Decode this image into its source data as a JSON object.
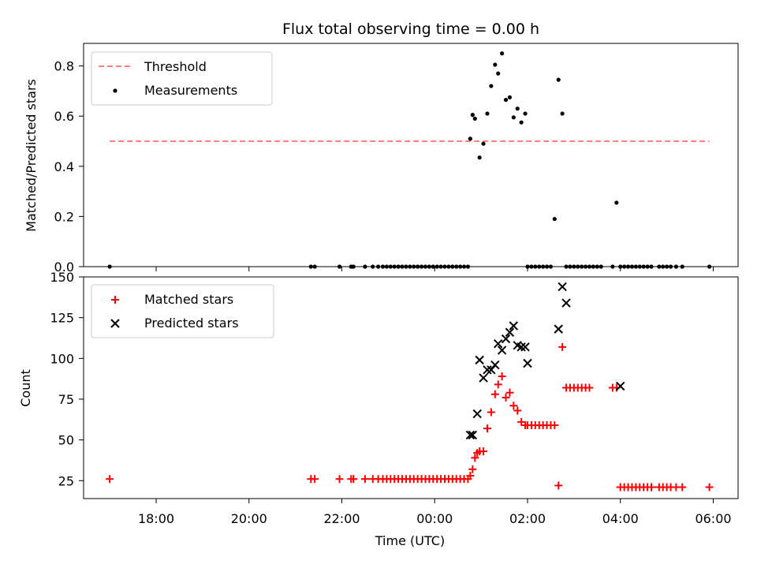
{
  "chart_data": [
    {
      "type": "scatter",
      "title": "Flux total observing time = 0.00 h",
      "ylabel": "Matched/Predicted stars",
      "xlabel": "",
      "ylim": [
        0,
        0.89
      ],
      "x_ticks": [
        "18:00",
        "20:00",
        "22:00",
        "00:00",
        "02:00",
        "04:00",
        "06:00"
      ],
      "y_ticks": [
        "0.0",
        "0.2",
        "0.4",
        "0.6",
        "0.8"
      ],
      "y_tick_values": [
        0,
        0.2,
        0.4,
        0.6,
        0.8
      ],
      "legend": {
        "position": "upper left",
        "entries": [
          "Threshold",
          "Measurements"
        ]
      },
      "threshold": {
        "name": "Threshold",
        "value": 0.5,
        "x_range": [
          "17:00",
          "05:55"
        ],
        "color": "#ff7f7f"
      },
      "series": [
        {
          "name": "Measurements",
          "color": "#000000",
          "x": [
            "17:00",
            "21:20",
            "21:25",
            "21:57",
            "22:12",
            "22:15",
            "22:30",
            "22:40",
            "22:47",
            "22:53",
            "22:58",
            "23:03",
            "23:08",
            "23:13",
            "23:18",
            "23:23",
            "23:28",
            "23:33",
            "23:38",
            "23:43",
            "23:48",
            "23:53",
            "23:58",
            "00:03",
            "00:08",
            "00:13",
            "00:18",
            "00:23",
            "00:28",
            "00:33",
            "00:38",
            "00:43",
            "00:46",
            "00:49",
            "00:52",
            "00:58",
            "01:03",
            "01:08",
            "01:13",
            "01:18",
            "01:22",
            "01:27",
            "01:32",
            "01:37",
            "01:42",
            "01:47",
            "01:52",
            "01:57",
            "02:00",
            "02:05",
            "02:10",
            "02:15",
            "02:20",
            "02:25",
            "02:30",
            "02:35",
            "02:40",
            "02:45",
            "02:50",
            "02:55",
            "03:00",
            "03:05",
            "03:10",
            "03:15",
            "03:20",
            "03:25",
            "03:30",
            "03:35",
            "03:50",
            "03:55",
            "04:00",
            "04:05",
            "04:10",
            "04:15",
            "04:20",
            "04:25",
            "04:30",
            "04:35",
            "04:40",
            "04:50",
            "04:55",
            "05:00",
            "05:05",
            "05:12",
            "05:20",
            "05:55"
          ],
          "y": [
            0.0,
            0.0,
            0.0,
            0.0,
            0.0,
            0.0,
            0.0,
            0.0,
            0.0,
            0.0,
            0.0,
            0.0,
            0.0,
            0.0,
            0.0,
            0.0,
            0.0,
            0.0,
            0.0,
            0.0,
            0.0,
            0.0,
            0.0,
            0.0,
            0.0,
            0.0,
            0.0,
            0.0,
            0.0,
            0.0,
            0.0,
            0.0,
            0.51,
            0.605,
            0.59,
            0.435,
            0.49,
            0.61,
            0.72,
            0.805,
            0.77,
            0.85,
            0.665,
            0.675,
            0.595,
            0.63,
            0.575,
            0.61,
            0.0,
            0.0,
            0.0,
            0.0,
            0.0,
            0.0,
            0.0,
            0.19,
            0.745,
            0.61,
            0.0,
            0.0,
            0.0,
            0.0,
            0.0,
            0.0,
            0.0,
            0.0,
            0.0,
            0.0,
            0.0,
            0.255,
            0.0,
            0.0,
            0.0,
            0.0,
            0.0,
            0.0,
            0.0,
            0.0,
            0.0,
            0.0,
            0.0,
            0.0,
            0.0,
            0.0,
            0.0,
            0.0
          ]
        }
      ]
    },
    {
      "type": "scatter",
      "title": "",
      "ylabel": "Count",
      "xlabel": "Time (UTC)",
      "ylim": [
        14,
        150
      ],
      "x_ticks": [
        "18:00",
        "20:00",
        "22:00",
        "00:00",
        "02:00",
        "04:00",
        "06:00"
      ],
      "y_ticks": [
        "25",
        "50",
        "75",
        "100",
        "125",
        "150"
      ],
      "y_tick_values": [
        25,
        50,
        75,
        100,
        125,
        150
      ],
      "legend": {
        "position": "upper left",
        "entries": [
          "Matched stars",
          "Predicted stars"
        ]
      },
      "series": [
        {
          "name": "Matched stars",
          "marker": "plus",
          "color": "#ff0000",
          "x": [
            "17:00",
            "21:20",
            "21:25",
            "21:57",
            "22:12",
            "22:15",
            "22:30",
            "22:40",
            "22:47",
            "22:53",
            "22:58",
            "23:03",
            "23:08",
            "23:13",
            "23:18",
            "23:23",
            "23:28",
            "23:33",
            "23:38",
            "23:43",
            "23:48",
            "23:53",
            "23:58",
            "00:03",
            "00:08",
            "00:13",
            "00:18",
            "00:23",
            "00:28",
            "00:33",
            "00:38",
            "00:43",
            "00:46",
            "00:49",
            "00:52",
            "00:55",
            "00:58",
            "01:03",
            "01:08",
            "01:13",
            "01:18",
            "01:22",
            "01:27",
            "01:32",
            "01:37",
            "01:42",
            "01:47",
            "01:52",
            "01:57",
            "02:00",
            "02:05",
            "02:10",
            "02:15",
            "02:20",
            "02:25",
            "02:30",
            "02:35",
            "02:40",
            "02:45",
            "02:50",
            "02:55",
            "03:00",
            "03:05",
            "03:10",
            "03:15",
            "03:20",
            "03:50",
            "03:55",
            "04:00",
            "04:05",
            "04:10",
            "04:15",
            "04:20",
            "04:25",
            "04:30",
            "04:35",
            "04:40",
            "04:50",
            "04:55",
            "05:00",
            "05:05",
            "05:12",
            "05:20",
            "05:55"
          ],
          "y": [
            26,
            26,
            26,
            26,
            26,
            26,
            26,
            26,
            26,
            26,
            26,
            26,
            26,
            26,
            26,
            26,
            26,
            26,
            26,
            26,
            26,
            26,
            26,
            26,
            26,
            26,
            26,
            26,
            26,
            26,
            26,
            26,
            28,
            32,
            39,
            42,
            43,
            43,
            57,
            67,
            78,
            84,
            89,
            76,
            79,
            71,
            68,
            61,
            59,
            59,
            59,
            59,
            59,
            59,
            59,
            59,
            59,
            22,
            107,
            82,
            82,
            82,
            82,
            82,
            82,
            82,
            82,
            82,
            21,
            21,
            21,
            21,
            21,
            21,
            21,
            21,
            21,
            21,
            21,
            21,
            21,
            21,
            21,
            21
          ]
        },
        {
          "name": "Predicted stars",
          "marker": "x",
          "color": "#000000",
          "x": [
            "00:46",
            "00:49",
            "00:55",
            "00:58",
            "01:03",
            "01:08",
            "01:13",
            "01:18",
            "01:22",
            "01:27",
            "01:32",
            "01:37",
            "01:42",
            "01:47",
            "01:52",
            "01:57",
            "02:00",
            "02:40",
            "02:45",
            "02:50",
            "04:00"
          ],
          "y": [
            53,
            53,
            66,
            99,
            88,
            93,
            93,
            96,
            109,
            105,
            112,
            116,
            120,
            108,
            107,
            107,
            97,
            118,
            144,
            134,
            83
          ]
        }
      ]
    }
  ]
}
